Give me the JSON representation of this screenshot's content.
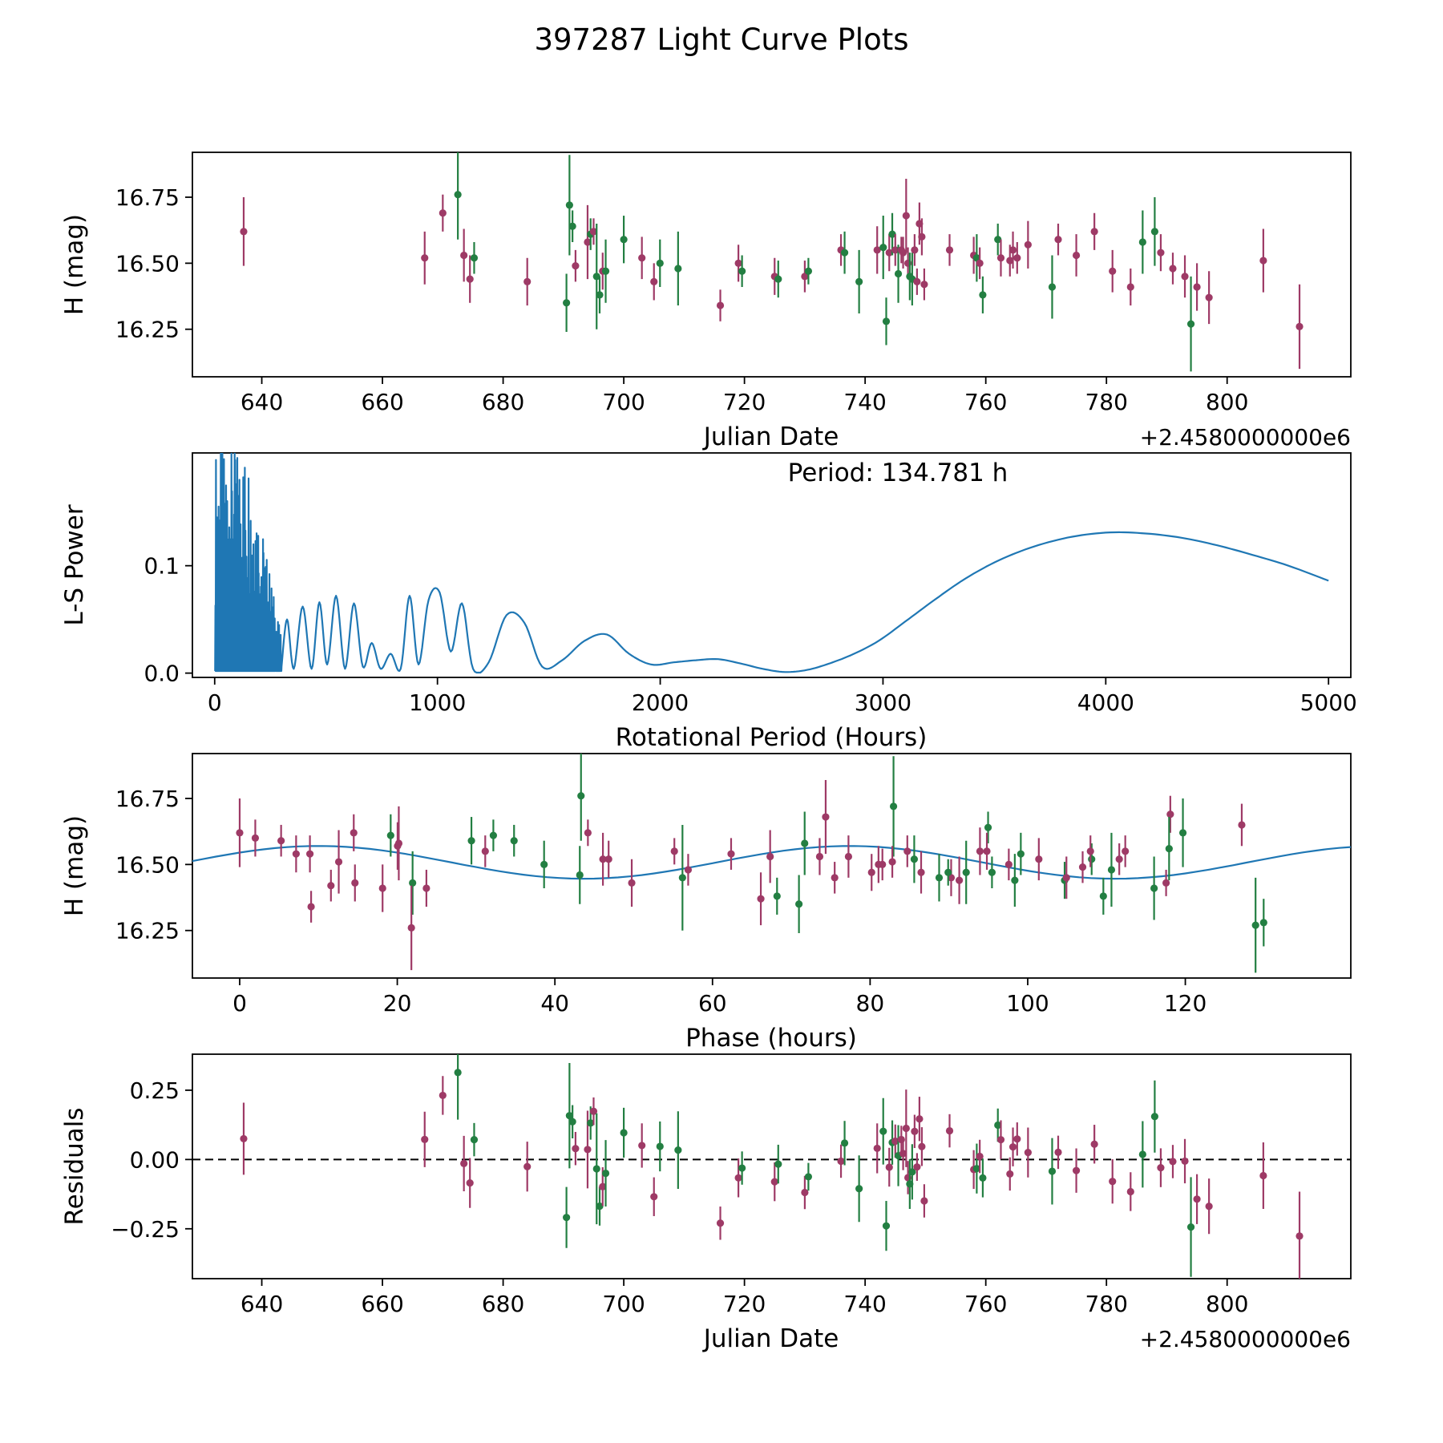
{
  "figure": {
    "title": "397287 Light Curve Plots",
    "colors": {
      "purple": "#9e3a66",
      "green": "#237f42",
      "line_blue": "#1f77b4",
      "axis": "#000000"
    }
  },
  "chart_data": [
    {
      "id": "light-curve",
      "type": "scatter",
      "xlabel": "Julian Date",
      "x_offset_label": "+2.4580000000e6",
      "ylabel": "H (mag)",
      "xlim": [
        628.5,
        820.5
      ],
      "ylim": [
        16.07,
        16.92
      ],
      "xtick_values": [
        640,
        660,
        680,
        700,
        720,
        740,
        760,
        780,
        800
      ],
      "xtick_labels": [
        "640",
        "660",
        "680",
        "700",
        "720",
        "740",
        "760",
        "780",
        "800"
      ],
      "ytick_values": [
        16.25,
        16.5,
        16.75
      ],
      "ytick_labels": [
        "16.25",
        "16.50",
        "16.75"
      ],
      "points_format": [
        "julian_date_minus_2458000",
        "H_mag",
        "err_mag",
        "series(0=purple,1=green)"
      ],
      "points": [
        [
          637,
          16.62,
          0.13,
          0
        ],
        [
          667,
          16.52,
          0.1,
          0
        ],
        [
          670,
          16.69,
          0.07,
          0
        ],
        [
          672.5,
          16.76,
          0.17,
          1
        ],
        [
          673.5,
          16.53,
          0.1,
          0
        ],
        [
          674.5,
          16.44,
          0.09,
          0
        ],
        [
          675.2,
          16.52,
          0.06,
          1
        ],
        [
          684,
          16.43,
          0.09,
          0
        ],
        [
          690.5,
          16.35,
          0.11,
          1
        ],
        [
          691,
          16.72,
          0.19,
          1
        ],
        [
          691.5,
          16.64,
          0.06,
          1
        ],
        [
          692,
          16.49,
          0.06,
          0
        ],
        [
          694,
          16.58,
          0.14,
          0
        ],
        [
          694.5,
          16.61,
          0.06,
          1
        ],
        [
          695,
          16.62,
          0.05,
          0
        ],
        [
          695.5,
          16.45,
          0.2,
          1
        ],
        [
          696,
          16.38,
          0.07,
          1
        ],
        [
          696.5,
          16.47,
          0.07,
          0
        ],
        [
          697,
          16.47,
          0.12,
          1
        ],
        [
          700,
          16.59,
          0.09,
          1
        ],
        [
          703,
          16.52,
          0.08,
          0
        ],
        [
          705,
          16.43,
          0.07,
          0
        ],
        [
          706,
          16.5,
          0.09,
          1
        ],
        [
          709,
          16.48,
          0.14,
          1
        ],
        [
          716,
          16.34,
          0.06,
          0
        ],
        [
          719,
          16.5,
          0.07,
          0
        ],
        [
          719.6,
          16.47,
          0.06,
          1
        ],
        [
          725,
          16.45,
          0.07,
          0
        ],
        [
          725.6,
          16.44,
          0.07,
          1
        ],
        [
          730,
          16.45,
          0.06,
          0
        ],
        [
          730.6,
          16.47,
          0.05,
          1
        ],
        [
          736,
          16.55,
          0.06,
          0
        ],
        [
          736.6,
          16.54,
          0.08,
          1
        ],
        [
          739,
          16.43,
          0.12,
          1
        ],
        [
          742,
          16.55,
          0.09,
          0
        ],
        [
          743,
          16.56,
          0.12,
          1
        ],
        [
          743.5,
          16.28,
          0.09,
          1
        ],
        [
          744,
          16.54,
          0.07,
          0
        ],
        [
          744.5,
          16.61,
          0.08,
          1
        ],
        [
          745,
          16.55,
          0.06,
          0
        ],
        [
          745.5,
          16.46,
          0.11,
          1
        ],
        [
          746,
          16.55,
          0.05,
          0
        ],
        [
          746.3,
          16.54,
          0.06,
          0
        ],
        [
          746.8,
          16.68,
          0.14,
          0
        ],
        [
          747.1,
          16.5,
          0.06,
          0
        ],
        [
          747.4,
          16.45,
          0.09,
          1
        ],
        [
          747.8,
          16.44,
          0.1,
          1
        ],
        [
          748.2,
          16.55,
          0.06,
          0
        ],
        [
          748.6,
          16.43,
          0.05,
          0
        ],
        [
          749,
          16.65,
          0.08,
          0
        ],
        [
          749.4,
          16.6,
          0.07,
          0
        ],
        [
          749.8,
          16.42,
          0.06,
          0
        ],
        [
          754,
          16.55,
          0.06,
          0
        ],
        [
          758,
          16.53,
          0.07,
          0
        ],
        [
          758.5,
          16.52,
          0.09,
          1
        ],
        [
          759,
          16.5,
          0.06,
          0
        ],
        [
          759.5,
          16.38,
          0.07,
          1
        ],
        [
          762,
          16.59,
          0.06,
          1
        ],
        [
          762.5,
          16.52,
          0.07,
          0
        ],
        [
          764,
          16.51,
          0.06,
          0
        ],
        [
          764.5,
          16.55,
          0.07,
          0
        ],
        [
          765.2,
          16.52,
          0.06,
          0
        ],
        [
          767,
          16.57,
          0.09,
          0
        ],
        [
          771,
          16.41,
          0.12,
          1
        ],
        [
          772,
          16.59,
          0.06,
          0
        ],
        [
          775,
          16.53,
          0.08,
          0
        ],
        [
          778,
          16.62,
          0.07,
          0
        ],
        [
          781,
          16.47,
          0.08,
          0
        ],
        [
          784,
          16.41,
          0.07,
          0
        ],
        [
          786,
          16.58,
          0.12,
          1
        ],
        [
          788,
          16.62,
          0.13,
          1
        ],
        [
          789,
          16.54,
          0.07,
          0
        ],
        [
          791,
          16.48,
          0.06,
          0
        ],
        [
          793,
          16.45,
          0.08,
          0
        ],
        [
          794,
          16.27,
          0.18,
          1
        ],
        [
          795,
          16.41,
          0.09,
          0
        ],
        [
          797,
          16.37,
          0.1,
          0
        ],
        [
          806,
          16.51,
          0.12,
          0
        ],
        [
          812,
          16.26,
          0.16,
          0
        ]
      ]
    },
    {
      "id": "periodogram",
      "type": "line",
      "xlabel": "Rotational Period (Hours)",
      "ylabel": "L-S Power",
      "annotation": "Period: 134.781 h",
      "best_period_hours": 134.781,
      "xlim": [
        -100,
        5100
      ],
      "ylim": [
        -0.004,
        0.205
      ],
      "xtick_values": [
        0,
        1000,
        2000,
        3000,
        4000,
        5000
      ],
      "xtick_labels": [
        "0",
        "1000",
        "2000",
        "3000",
        "4000",
        "5000"
      ],
      "ytick_values": [
        0.0,
        0.1
      ],
      "ytick_labels": [
        "0.0",
        "0.1"
      ],
      "noise_spikes": {
        "x_start": 2,
        "x_end": 300,
        "peak_power": 0.21,
        "taper_from": 150,
        "taper_floor": 0.03
      },
      "curve_points": [
        [
          300,
          0.006
        ],
        [
          325,
          0.05
        ],
        [
          355,
          0.004
        ],
        [
          395,
          0.062
        ],
        [
          435,
          0.004
        ],
        [
          470,
          0.066
        ],
        [
          505,
          0.008
        ],
        [
          545,
          0.072
        ],
        [
          585,
          0.004
        ],
        [
          625,
          0.065
        ],
        [
          665,
          0.006
        ],
        [
          705,
          0.028
        ],
        [
          745,
          0.004
        ],
        [
          790,
          0.018
        ],
        [
          835,
          0.004
        ],
        [
          875,
          0.072
        ],
        [
          915,
          0.008
        ],
        [
          960,
          0.068
        ],
        [
          1010,
          0.075
        ],
        [
          1060,
          0.02
        ],
        [
          1110,
          0.065
        ],
        [
          1160,
          0.004
        ],
        [
          1230,
          0.01
        ],
        [
          1310,
          0.054
        ],
        [
          1390,
          0.047
        ],
        [
          1470,
          0.006
        ],
        [
          1560,
          0.012
        ],
        [
          1660,
          0.03
        ],
        [
          1760,
          0.036
        ],
        [
          1860,
          0.018
        ],
        [
          1960,
          0.008
        ],
        [
          2060,
          0.01
        ],
        [
          2160,
          0.012
        ],
        [
          2260,
          0.013
        ],
        [
          2360,
          0.009
        ],
        [
          2460,
          0.004
        ],
        [
          2560,
          0.001
        ],
        [
          2660,
          0.003
        ],
        [
          2760,
          0.009
        ],
        [
          2870,
          0.018
        ],
        [
          2980,
          0.03
        ],
        [
          3100,
          0.048
        ],
        [
          3230,
          0.068
        ],
        [
          3370,
          0.088
        ],
        [
          3520,
          0.105
        ],
        [
          3680,
          0.118
        ],
        [
          3850,
          0.127
        ],
        [
          4020,
          0.131
        ],
        [
          4180,
          0.13
        ],
        [
          4340,
          0.126
        ],
        [
          4500,
          0.119
        ],
        [
          4660,
          0.11
        ],
        [
          4820,
          0.1
        ],
        [
          5000,
          0.086
        ]
      ]
    },
    {
      "id": "phase-folded",
      "type": "scatter",
      "xlabel": "Phase (hours)",
      "ylabel": "H (mag)",
      "xlim": [
        -6,
        141
      ],
      "ylim": [
        16.07,
        16.92
      ],
      "xtick_values": [
        0,
        20,
        40,
        60,
        80,
        100,
        120
      ],
      "xtick_labels": [
        "0",
        "20",
        "40",
        "60",
        "80",
        "100",
        "120"
      ],
      "ytick_values": [
        16.25,
        16.5,
        16.75
      ],
      "ytick_labels": [
        "16.25",
        "16.50",
        "16.75"
      ],
      "points_source": "light-curve points folded at best period",
      "fit": {
        "mean_mag": 16.508,
        "amplitude_mag": 0.062,
        "period_hours": 134.781,
        "cycles_per_period": 2,
        "phase_of_max_hours": 10,
        "fold_epoch_jd_minus_2458000": 637
      }
    },
    {
      "id": "residuals",
      "type": "scatter",
      "xlabel": "Julian Date",
      "x_offset_label": "+2.4580000000e6",
      "ylabel": "Residuals",
      "xlim": [
        628.5,
        820.5
      ],
      "ylim": [
        -0.43,
        0.38
      ],
      "xtick_values": [
        640,
        660,
        680,
        700,
        720,
        740,
        760,
        780,
        800
      ],
      "xtick_labels": [
        "640",
        "660",
        "680",
        "700",
        "720",
        "740",
        "760",
        "780",
        "800"
      ],
      "ytick_values": [
        -0.25,
        0,
        0.25
      ],
      "ytick_labels": [
        "−0.25",
        "0.00",
        "0.25"
      ],
      "zero_line": true,
      "points_source": "light-curve points minus fitted model"
    }
  ]
}
